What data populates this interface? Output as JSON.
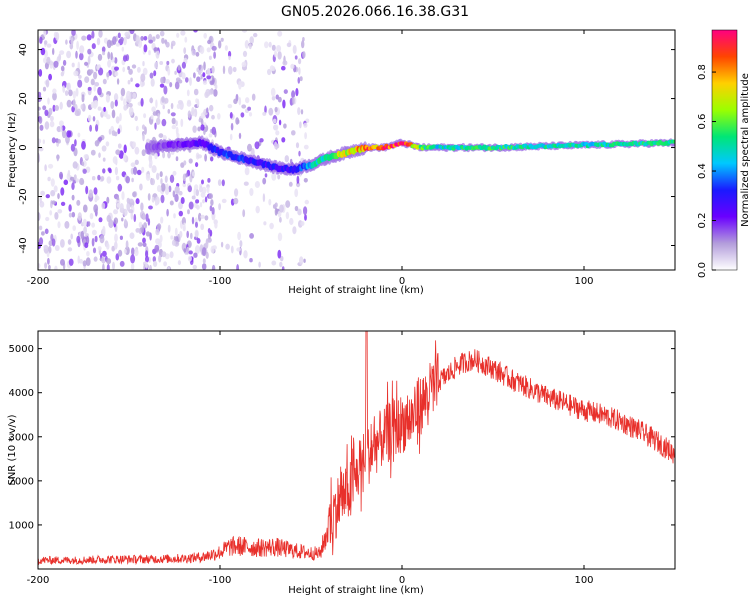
{
  "title": "GN05.2026.066.16.38.G31",
  "chart_data": [
    {
      "type": "heatmap",
      "title": "GN05.2026.066.16.38.G31",
      "xlabel": "Height of straight line (km)",
      "ylabel": "Frequency (Hz)",
      "xlim": [
        -200,
        150
      ],
      "ylim": [
        -50,
        48
      ],
      "xticks": [
        -200,
        -100,
        0,
        100
      ],
      "yticks": [
        -40,
        -20,
        0,
        20,
        40
      ],
      "colorbar": {
        "label": "Normalized spectral amplitude",
        "range": [
          0,
          0.97
        ],
        "ticks": [
          0.0,
          0.2,
          0.4,
          0.6,
          0.8
        ],
        "colors": [
          "#ffffff",
          "#b39ddb",
          "#6a00ff",
          "#1a1aff",
          "#00c8ff",
          "#00e676",
          "#9bff00",
          "#ffd000",
          "#ff4500",
          "#ff0080"
        ]
      },
      "ridge_track": {
        "x": [
          -140,
          -110,
          -100,
          -90,
          -80,
          -70,
          -60,
          -50,
          -40,
          -30,
          -20,
          -10,
          0,
          10,
          20,
          50,
          100,
          150
        ],
        "y": [
          0,
          2,
          -2,
          -4,
          -6,
          -8,
          -9,
          -7,
          -4,
          -2,
          0,
          0,
          2,
          0,
          0,
          0,
          1,
          2
        ],
        "amplitude": [
          0.15,
          0.25,
          0.35,
          0.35,
          0.3,
          0.3,
          0.3,
          0.45,
          0.6,
          0.75,
          0.85,
          0.9,
          0.95,
          0.6,
          0.5,
          0.55,
          0.5,
          0.55
        ]
      }
    },
    {
      "type": "line",
      "xlabel": "Height of straight line (km)",
      "ylabel": "SNR (10 * v/v)",
      "xlim": [
        -200,
        150
      ],
      "ylim": [
        0,
        5400
      ],
      "xticks": [
        -200,
        -100,
        0,
        100
      ],
      "yticks": [
        1000,
        2000,
        3000,
        4000,
        5000
      ],
      "series": [
        {
          "name": "SNR",
          "color": "#e8302b",
          "x": [
            -200,
            -180,
            -160,
            -140,
            -120,
            -110,
            -100,
            -95,
            -90,
            -80,
            -70,
            -60,
            -50,
            -45,
            -40,
            -38,
            -35,
            -32,
            -30,
            -28,
            -25,
            -22,
            -20,
            -18,
            -15,
            -10,
            -5,
            0,
            5,
            10,
            15,
            20,
            25,
            30,
            35,
            40,
            45,
            50,
            60,
            70,
            80,
            90,
            100,
            110,
            120,
            130,
            140,
            150
          ],
          "values": [
            200,
            200,
            220,
            220,
            240,
            270,
            380,
            500,
            520,
            480,
            500,
            420,
            360,
            350,
            1000,
            1200,
            1500,
            1650,
            1700,
            1900,
            2100,
            2400,
            2500,
            2600,
            2800,
            3000,
            3200,
            3300,
            3400,
            3700,
            4000,
            4250,
            4400,
            4600,
            4700,
            4750,
            4650,
            4550,
            4300,
            4100,
            3900,
            3750,
            3600,
            3500,
            3350,
            3150,
            2900,
            2600
          ]
        }
      ]
    }
  ]
}
